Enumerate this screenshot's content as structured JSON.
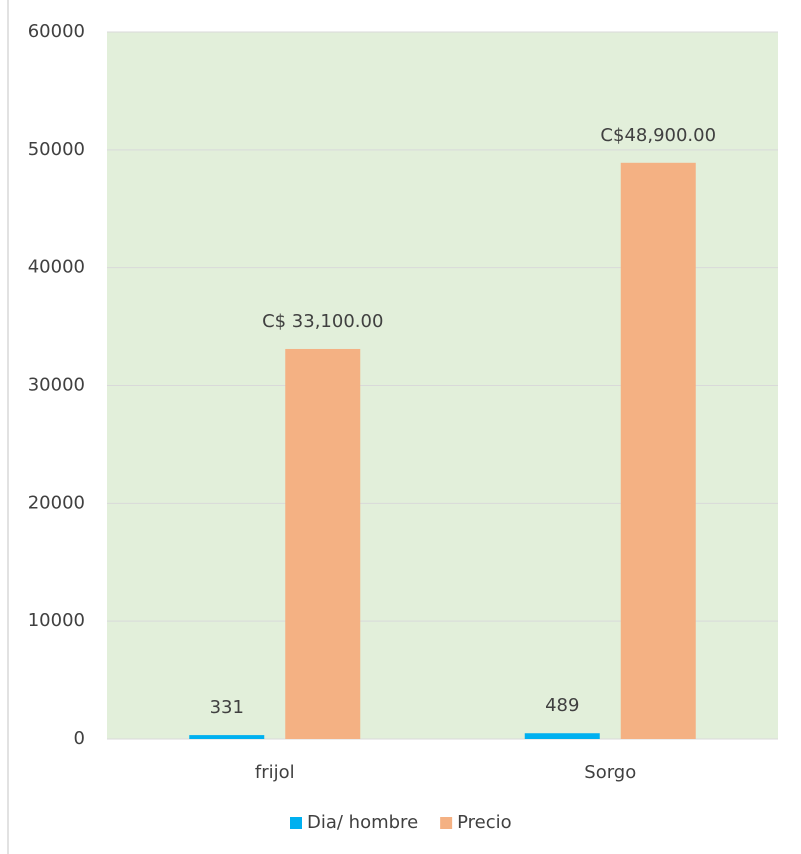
{
  "chart_data": {
    "type": "bar",
    "categories": [
      "frijol",
      "Sorgo"
    ],
    "series": [
      {
        "name": "Dia/ hombre",
        "color": "#00b0f0",
        "values": [
          331,
          489
        ]
      },
      {
        "name": "Precio",
        "color": "#f4b183",
        "values": [
          33100,
          48900
        ],
        "value_labels": [
          "C$ 33,100.00",
          "C$48,900.00"
        ]
      }
    ],
    "ylim": [
      0,
      60000
    ],
    "yticks": [
      0,
      10000,
      20000,
      30000,
      40000,
      50000,
      60000
    ],
    "grid": true,
    "legend": "bottom",
    "plot_background": "#e2efda"
  }
}
